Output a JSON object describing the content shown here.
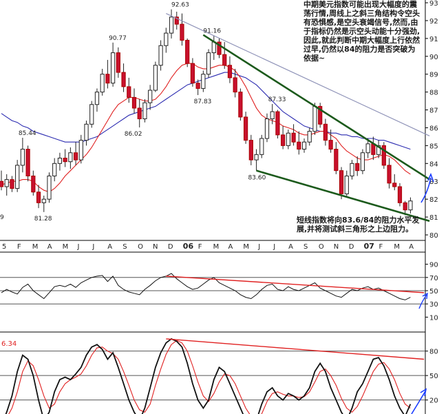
{
  "annotations": {
    "upper": "中期美元指数可能出现大幅度的震荡行情,周线上之斜三角结构令空头有恐惧感,是空头衰竭信号,然而,由于指标仍然是示空头动能十分强劲,因此,就此判断中期大幅度上行依然过早,仍然以84的阻力是否突破为依据~",
    "lower": "短线指数将向83.6/84的阻力水平发展,并将测试斜三角形之上边阻力。"
  },
  "chart_data": {
    "type": "candlestick",
    "price_panel": {
      "y_axis_ticks": [
        "93",
        "92",
        "91",
        "90",
        "89",
        "88",
        "87",
        "86",
        "85",
        "84",
        "83",
        "82",
        "81",
        "80"
      ],
      "ylim": [
        80,
        93
      ],
      "x_axis_labels": [
        "5",
        "F",
        "M",
        "A",
        "M",
        "J",
        "J",
        "A",
        "S",
        "O",
        "N",
        "D",
        "06",
        "F",
        "M",
        "A",
        "M",
        "J",
        "J",
        "A",
        "S",
        "O",
        "N",
        "D",
        "07",
        "F",
        "M",
        "A"
      ],
      "price_labels": [
        "92.63",
        "91.16",
        "90.77",
        "87.83",
        "87.33",
        "85.44",
        "86.02",
        "83.60",
        "81.28",
        "9"
      ],
      "candles": [
        [
          83.0,
          83.6,
          82.5,
          82.7
        ],
        [
          82.7,
          83.4,
          82.2,
          83.1
        ],
        [
          83.1,
          83.3,
          82.4,
          82.6
        ],
        [
          82.6,
          84.2,
          82.4,
          83.9
        ],
        [
          83.9,
          85.44,
          83.5,
          84.8
        ],
        [
          84.8,
          85.0,
          83.0,
          83.3
        ],
        [
          83.3,
          83.6,
          82.2,
          82.4
        ],
        [
          82.4,
          82.8,
          81.5,
          81.8
        ],
        [
          81.8,
          82.2,
          81.28,
          82.0
        ],
        [
          82.0,
          83.5,
          81.8,
          83.3
        ],
        [
          83.3,
          84.3,
          83.0,
          84.0
        ],
        [
          84.0,
          84.6,
          83.6,
          84.3
        ],
        [
          84.3,
          84.8,
          83.8,
          84.1
        ],
        [
          84.1,
          84.9,
          83.7,
          84.6
        ],
        [
          84.6,
          85.2,
          83.9,
          84.2
        ],
        [
          84.2,
          85.6,
          84.0,
          85.3
        ],
        [
          85.3,
          86.4,
          85.0,
          86.2
        ],
        [
          86.2,
          87.5,
          86.0,
          87.3
        ],
        [
          87.3,
          88.2,
          86.9,
          88.0
        ],
        [
          88.0,
          89.3,
          87.8,
          89.0
        ],
        [
          89.0,
          89.8,
          88.2,
          88.5
        ],
        [
          88.5,
          90.77,
          88.3,
          90.2
        ],
        [
          90.2,
          90.5,
          88.8,
          89.1
        ],
        [
          89.1,
          89.6,
          88.0,
          88.3
        ],
        [
          88.3,
          88.8,
          87.4,
          87.7
        ],
        [
          87.7,
          88.2,
          86.8,
          87.1
        ],
        [
          87.1,
          87.6,
          86.02,
          86.5
        ],
        [
          86.5,
          87.6,
          86.3,
          87.4
        ],
        [
          87.4,
          88.4,
          87.0,
          88.1
        ],
        [
          88.1,
          89.7,
          88.0,
          89.5
        ],
        [
          89.5,
          90.9,
          89.2,
          90.6
        ],
        [
          90.6,
          91.6,
          90.2,
          91.3
        ],
        [
          91.3,
          92.63,
          91.0,
          92.2
        ],
        [
          92.2,
          92.5,
          91.5,
          91.8
        ],
        [
          91.8,
          92.4,
          90.6,
          90.9
        ],
        [
          90.9,
          91.0,
          89.4,
          89.6
        ],
        [
          89.6,
          89.9,
          88.3,
          88.5
        ],
        [
          88.5,
          88.7,
          87.83,
          88.2
        ],
        [
          88.2,
          89.2,
          88.0,
          89.0
        ],
        [
          89.0,
          90.4,
          88.8,
          90.2
        ],
        [
          90.2,
          91.16,
          89.8,
          90.8
        ],
        [
          90.8,
          91.0,
          89.9,
          90.1
        ],
        [
          90.1,
          90.8,
          89.3,
          89.5
        ],
        [
          89.5,
          90.0,
          88.5,
          88.8
        ],
        [
          88.8,
          89.3,
          87.7,
          88.0
        ],
        [
          88.0,
          88.2,
          86.4,
          86.6
        ],
        [
          86.6,
          86.9,
          85.1,
          85.3
        ],
        [
          85.3,
          85.6,
          83.9,
          84.2
        ],
        [
          84.2,
          84.8,
          83.6,
          84.5
        ],
        [
          84.5,
          85.6,
          84.3,
          85.4
        ],
        [
          85.4,
          86.8,
          85.2,
          86.5
        ],
        [
          86.5,
          87.33,
          86.2,
          86.9
        ],
        [
          86.9,
          87.0,
          85.4,
          85.6
        ],
        [
          85.6,
          86.1,
          84.8,
          85.0
        ],
        [
          85.0,
          85.9,
          84.8,
          85.7
        ],
        [
          85.7,
          86.2,
          85.0,
          85.2
        ],
        [
          85.2,
          85.8,
          84.5,
          84.8
        ],
        [
          84.8,
          85.4,
          84.6,
          85.2
        ],
        [
          85.2,
          86.0,
          85.0,
          85.8
        ],
        [
          85.8,
          87.4,
          85.6,
          87.2
        ],
        [
          87.2,
          87.4,
          86.0,
          86.2
        ],
        [
          86.2,
          86.5,
          85.0,
          85.3
        ],
        [
          85.3,
          85.9,
          84.6,
          84.8
        ],
        [
          84.8,
          85.2,
          83.4,
          83.6
        ],
        [
          83.6,
          83.8,
          82.0,
          82.3
        ],
        [
          82.3,
          83.6,
          82.1,
          83.3
        ],
        [
          83.3,
          84.2,
          83.1,
          84.0
        ],
        [
          84.0,
          84.4,
          83.3,
          83.6
        ],
        [
          83.6,
          84.8,
          83.4,
          84.6
        ],
        [
          84.6,
          85.4,
          84.3,
          85.1
        ],
        [
          85.1,
          85.5,
          84.2,
          84.5
        ],
        [
          84.5,
          85.3,
          84.3,
          85.0
        ],
        [
          85.0,
          85.2,
          83.7,
          83.9
        ],
        [
          83.9,
          84.3,
          82.6,
          82.9
        ],
        [
          82.9,
          83.4,
          82.5,
          82.7
        ],
        [
          82.7,
          82.9,
          81.6,
          81.8
        ],
        [
          81.8,
          81.9,
          81.1,
          81.4
        ],
        [
          81.4,
          82.1,
          81.2,
          81.9
        ]
      ],
      "ma_short": [
        82.8,
        82.9,
        83.0,
        83.0,
        83.1,
        83.1,
        83.0,
        82.7,
        82.5,
        82.4,
        82.6,
        82.9,
        83.3,
        83.6,
        83.9,
        84.2,
        84.5,
        84.9,
        85.4,
        85.9,
        86.4,
        86.9,
        87.3,
        87.5,
        87.7,
        87.7,
        87.6,
        87.5,
        87.5,
        87.6,
        87.9,
        88.3,
        88.8,
        89.2,
        89.5,
        89.6,
        89.6,
        89.4,
        89.3,
        89.3,
        89.4,
        89.5,
        89.5,
        89.4,
        89.2,
        88.8,
        88.3,
        87.7,
        87.1,
        86.7,
        86.5,
        86.4,
        86.3,
        86.1,
        86.0,
        85.9,
        85.7,
        85.6,
        85.6,
        85.7,
        85.8,
        85.8,
        85.6,
        85.4,
        85.0,
        84.7,
        84.5,
        84.3,
        84.2,
        84.2,
        84.3,
        84.4,
        84.5,
        84.4,
        84.2,
        83.9,
        83.6,
        83.4
      ],
      "ma_long": [
        86.8,
        86.6,
        86.4,
        86.3,
        86.1,
        86.0,
        85.8,
        85.7,
        85.6,
        85.5,
        85.4,
        85.3,
        85.2,
        85.2,
        85.2,
        85.2,
        85.3,
        85.4,
        85.5,
        85.7,
        85.9,
        86.1,
        86.3,
        86.5,
        86.7,
        86.8,
        86.9,
        87.0,
        87.1,
        87.2,
        87.4,
        87.6,
        87.8,
        88.0,
        88.2,
        88.4,
        88.5,
        88.6,
        88.7,
        88.8,
        88.9,
        89.0,
        89.1,
        89.1,
        89.0,
        88.9,
        88.8,
        88.6,
        88.4,
        88.1,
        87.8,
        87.5,
        87.2,
        86.9,
        86.7,
        86.5,
        86.3,
        86.1,
        86.0,
        85.9,
        85.8,
        85.8,
        85.7,
        85.7,
        85.6,
        85.6,
        85.5,
        85.5,
        85.4,
        85.4,
        85.4,
        85.3,
        85.3,
        85.2,
        85.1,
        85.0,
        84.9,
        84.8
      ],
      "trendlines": [
        {
          "label": "upper falling wedge line",
          "x1": 38,
          "y1": 91.2,
          "x2": 78,
          "y2": 83.6,
          "color": "#1c5a1c"
        },
        {
          "label": "lower falling wedge line",
          "x1": 48,
          "y1": 83.6,
          "x2": 78,
          "y2": 81.0,
          "color": "#1c5a1c"
        },
        {
          "label": "long-term resistance",
          "x1": 31,
          "y1": 92.4,
          "x2": 78,
          "y2": 85.9,
          "color": "#8f93b8"
        }
      ]
    },
    "rsi_panel": {
      "y_axis_ticks": [
        "90",
        "70",
        "50",
        "30",
        "10"
      ],
      "ylim": [
        0,
        100
      ],
      "reference_lines": [
        70,
        50,
        30
      ],
      "values": [
        47,
        52,
        48,
        45,
        55,
        60,
        50,
        44,
        38,
        47,
        56,
        58,
        56,
        60,
        55,
        62,
        66,
        70,
        72,
        73,
        64,
        72,
        58,
        52,
        48,
        46,
        44,
        52,
        58,
        65,
        70,
        72,
        76,
        68,
        62,
        56,
        52,
        54,
        60,
        66,
        70,
        62,
        58,
        54,
        50,
        44,
        40,
        38,
        44,
        52,
        58,
        60,
        52,
        50,
        56,
        52,
        50,
        54,
        58,
        62,
        54,
        50,
        46,
        42,
        40,
        46,
        52,
        50,
        54,
        56,
        52,
        54,
        50,
        46,
        42,
        38,
        36,
        40
      ],
      "trendline": {
        "x1": 31,
        "y1": 72,
        "x2": 78,
        "y2": 48
      }
    },
    "stoch_panel": {
      "label": "6.34",
      "y_axis_ticks": [
        "80",
        "50",
        "20"
      ],
      "ylim": [
        0,
        100
      ],
      "reference_lines": [
        80,
        50,
        20
      ],
      "fast": [
        -10,
        5,
        25,
        55,
        75,
        70,
        50,
        20,
        -5,
        5,
        30,
        45,
        48,
        45,
        52,
        60,
        75,
        85,
        88,
        82,
        70,
        78,
        60,
        40,
        20,
        5,
        -5,
        10,
        35,
        60,
        78,
        90,
        95,
        92,
        85,
        65,
        40,
        20,
        10,
        20,
        45,
        60,
        55,
        40,
        25,
        10,
        -5,
        -20,
        -5,
        15,
        30,
        35,
        25,
        20,
        28,
        25,
        20,
        25,
        35,
        55,
        65,
        55,
        35,
        20,
        5,
        -5,
        10,
        30,
        40,
        55,
        70,
        72,
        62,
        45,
        25,
        10,
        0,
        15
      ],
      "slow": [
        -5,
        -2,
        10,
        30,
        55,
        68,
        62,
        45,
        25,
        10,
        15,
        30,
        40,
        45,
        48,
        52,
        62,
        75,
        84,
        85,
        80,
        77,
        70,
        55,
        38,
        20,
        8,
        5,
        15,
        38,
        58,
        76,
        88,
        93,
        90,
        80,
        62,
        42,
        25,
        18,
        28,
        42,
        52,
        50,
        40,
        25,
        10,
        0,
        -5,
        3,
        18,
        28,
        30,
        27,
        25,
        25,
        23,
        24,
        30,
        42,
        55,
        58,
        50,
        38,
        22,
        10,
        5,
        12,
        25,
        40,
        55,
        64,
        66,
        58,
        45,
        28,
        15,
        10
      ],
      "trendline": {
        "x1": 31,
        "y1": 95,
        "x2": 78,
        "y2": 72
      }
    }
  }
}
